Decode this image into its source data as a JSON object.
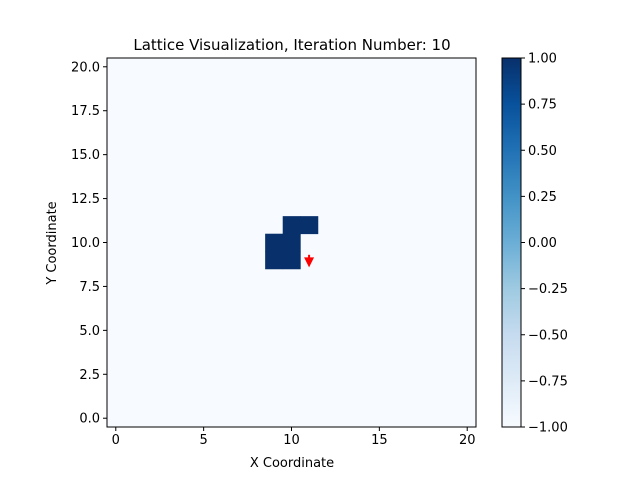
{
  "chart_data": {
    "type": "heatmap",
    "title": "Lattice Visualization, Iteration Number: 10",
    "xlabel": "X Coordinate",
    "ylabel": "Y Coordinate",
    "xlim": [
      -0.5,
      20.5
    ],
    "ylim": [
      -0.5,
      20.5
    ],
    "xticks": [
      0,
      5,
      10,
      15,
      20
    ],
    "xtick_labels": [
      "0",
      "5",
      "10",
      "15",
      "20"
    ],
    "yticks": [
      0.0,
      2.5,
      5.0,
      7.5,
      10.0,
      12.5,
      15.0,
      17.5,
      20.0
    ],
    "ytick_labels": [
      "0.0",
      "2.5",
      "5.0",
      "7.5",
      "10.0",
      "12.5",
      "15.0",
      "17.5",
      "20.0"
    ],
    "grid_size": [
      21,
      21
    ],
    "background_value": -1,
    "occupied_value": 1,
    "occupied_cells": [
      {
        "x": 9,
        "y": 9
      },
      {
        "x": 10,
        "y": 9
      },
      {
        "x": 9,
        "y": 10
      },
      {
        "x": 10,
        "y": 10
      },
      {
        "x": 10,
        "y": 11
      },
      {
        "x": 11,
        "y": 11
      }
    ],
    "arrow": {
      "x": 11,
      "y": 9.3,
      "dx": 0,
      "dy": -0.6,
      "color": "#ff0000",
      "direction": "down"
    },
    "colormap": "Blues",
    "colors": {
      "min": "#f7fbff",
      "max": "#08306b",
      "arrow": "#ff0000"
    },
    "colorbar": {
      "range": [
        -1.0,
        1.0
      ],
      "ticks": [
        1.0,
        0.75,
        0.5,
        0.25,
        0.0,
        -0.25,
        -0.5,
        -0.75,
        -1.0
      ],
      "tick_labels": [
        "1.00",
        "0.75",
        "0.50",
        "0.25",
        "0.00",
        "−0.25",
        "−0.50",
        "−0.75",
        "−1.00"
      ]
    },
    "grid": false
  }
}
